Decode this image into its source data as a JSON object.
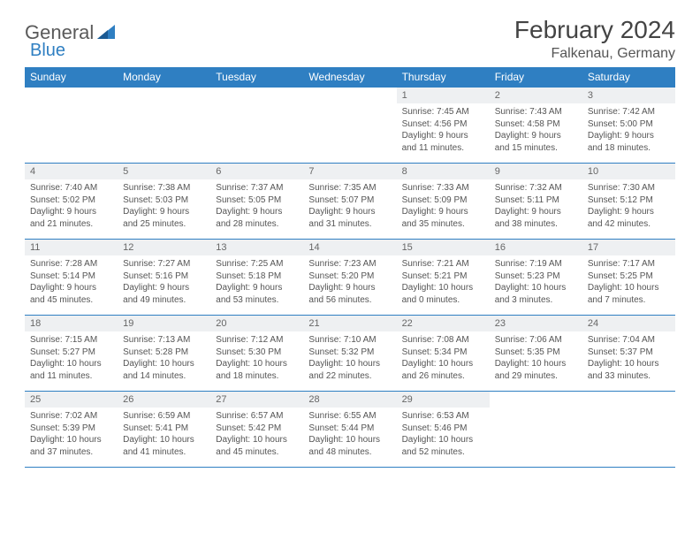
{
  "logo": {
    "text1": "General",
    "text2": "Blue"
  },
  "title": "February 2024",
  "location": "Falkenau, Germany",
  "colors": {
    "accent": "#2f7fc2",
    "header_text": "#ffffff",
    "daynum_bg": "#eef0f2",
    "text": "#555555"
  },
  "weekdays": [
    "Sunday",
    "Monday",
    "Tuesday",
    "Wednesday",
    "Thursday",
    "Friday",
    "Saturday"
  ],
  "weeks": [
    [
      null,
      null,
      null,
      null,
      {
        "n": "1",
        "sunrise": "7:45 AM",
        "sunset": "4:56 PM",
        "dl1": "Daylight: 9 hours",
        "dl2": "and 11 minutes."
      },
      {
        "n": "2",
        "sunrise": "7:43 AM",
        "sunset": "4:58 PM",
        "dl1": "Daylight: 9 hours",
        "dl2": "and 15 minutes."
      },
      {
        "n": "3",
        "sunrise": "7:42 AM",
        "sunset": "5:00 PM",
        "dl1": "Daylight: 9 hours",
        "dl2": "and 18 minutes."
      }
    ],
    [
      {
        "n": "4",
        "sunrise": "7:40 AM",
        "sunset": "5:02 PM",
        "dl1": "Daylight: 9 hours",
        "dl2": "and 21 minutes."
      },
      {
        "n": "5",
        "sunrise": "7:38 AM",
        "sunset": "5:03 PM",
        "dl1": "Daylight: 9 hours",
        "dl2": "and 25 minutes."
      },
      {
        "n": "6",
        "sunrise": "7:37 AM",
        "sunset": "5:05 PM",
        "dl1": "Daylight: 9 hours",
        "dl2": "and 28 minutes."
      },
      {
        "n": "7",
        "sunrise": "7:35 AM",
        "sunset": "5:07 PM",
        "dl1": "Daylight: 9 hours",
        "dl2": "and 31 minutes."
      },
      {
        "n": "8",
        "sunrise": "7:33 AM",
        "sunset": "5:09 PM",
        "dl1": "Daylight: 9 hours",
        "dl2": "and 35 minutes."
      },
      {
        "n": "9",
        "sunrise": "7:32 AM",
        "sunset": "5:11 PM",
        "dl1": "Daylight: 9 hours",
        "dl2": "and 38 minutes."
      },
      {
        "n": "10",
        "sunrise": "7:30 AM",
        "sunset": "5:12 PM",
        "dl1": "Daylight: 9 hours",
        "dl2": "and 42 minutes."
      }
    ],
    [
      {
        "n": "11",
        "sunrise": "7:28 AM",
        "sunset": "5:14 PM",
        "dl1": "Daylight: 9 hours",
        "dl2": "and 45 minutes."
      },
      {
        "n": "12",
        "sunrise": "7:27 AM",
        "sunset": "5:16 PM",
        "dl1": "Daylight: 9 hours",
        "dl2": "and 49 minutes."
      },
      {
        "n": "13",
        "sunrise": "7:25 AM",
        "sunset": "5:18 PM",
        "dl1": "Daylight: 9 hours",
        "dl2": "and 53 minutes."
      },
      {
        "n": "14",
        "sunrise": "7:23 AM",
        "sunset": "5:20 PM",
        "dl1": "Daylight: 9 hours",
        "dl2": "and 56 minutes."
      },
      {
        "n": "15",
        "sunrise": "7:21 AM",
        "sunset": "5:21 PM",
        "dl1": "Daylight: 10 hours",
        "dl2": "and 0 minutes."
      },
      {
        "n": "16",
        "sunrise": "7:19 AM",
        "sunset": "5:23 PM",
        "dl1": "Daylight: 10 hours",
        "dl2": "and 3 minutes."
      },
      {
        "n": "17",
        "sunrise": "7:17 AM",
        "sunset": "5:25 PM",
        "dl1": "Daylight: 10 hours",
        "dl2": "and 7 minutes."
      }
    ],
    [
      {
        "n": "18",
        "sunrise": "7:15 AM",
        "sunset": "5:27 PM",
        "dl1": "Daylight: 10 hours",
        "dl2": "and 11 minutes."
      },
      {
        "n": "19",
        "sunrise": "7:13 AM",
        "sunset": "5:28 PM",
        "dl1": "Daylight: 10 hours",
        "dl2": "and 14 minutes."
      },
      {
        "n": "20",
        "sunrise": "7:12 AM",
        "sunset": "5:30 PM",
        "dl1": "Daylight: 10 hours",
        "dl2": "and 18 minutes."
      },
      {
        "n": "21",
        "sunrise": "7:10 AM",
        "sunset": "5:32 PM",
        "dl1": "Daylight: 10 hours",
        "dl2": "and 22 minutes."
      },
      {
        "n": "22",
        "sunrise": "7:08 AM",
        "sunset": "5:34 PM",
        "dl1": "Daylight: 10 hours",
        "dl2": "and 26 minutes."
      },
      {
        "n": "23",
        "sunrise": "7:06 AM",
        "sunset": "5:35 PM",
        "dl1": "Daylight: 10 hours",
        "dl2": "and 29 minutes."
      },
      {
        "n": "24",
        "sunrise": "7:04 AM",
        "sunset": "5:37 PM",
        "dl1": "Daylight: 10 hours",
        "dl2": "and 33 minutes."
      }
    ],
    [
      {
        "n": "25",
        "sunrise": "7:02 AM",
        "sunset": "5:39 PM",
        "dl1": "Daylight: 10 hours",
        "dl2": "and 37 minutes."
      },
      {
        "n": "26",
        "sunrise": "6:59 AM",
        "sunset": "5:41 PM",
        "dl1": "Daylight: 10 hours",
        "dl2": "and 41 minutes."
      },
      {
        "n": "27",
        "sunrise": "6:57 AM",
        "sunset": "5:42 PM",
        "dl1": "Daylight: 10 hours",
        "dl2": "and 45 minutes."
      },
      {
        "n": "28",
        "sunrise": "6:55 AM",
        "sunset": "5:44 PM",
        "dl1": "Daylight: 10 hours",
        "dl2": "and 48 minutes."
      },
      {
        "n": "29",
        "sunrise": "6:53 AM",
        "sunset": "5:46 PM",
        "dl1": "Daylight: 10 hours",
        "dl2": "and 52 minutes."
      },
      null,
      null
    ]
  ],
  "labels": {
    "sunrise_prefix": "Sunrise: ",
    "sunset_prefix": "Sunset: "
  }
}
